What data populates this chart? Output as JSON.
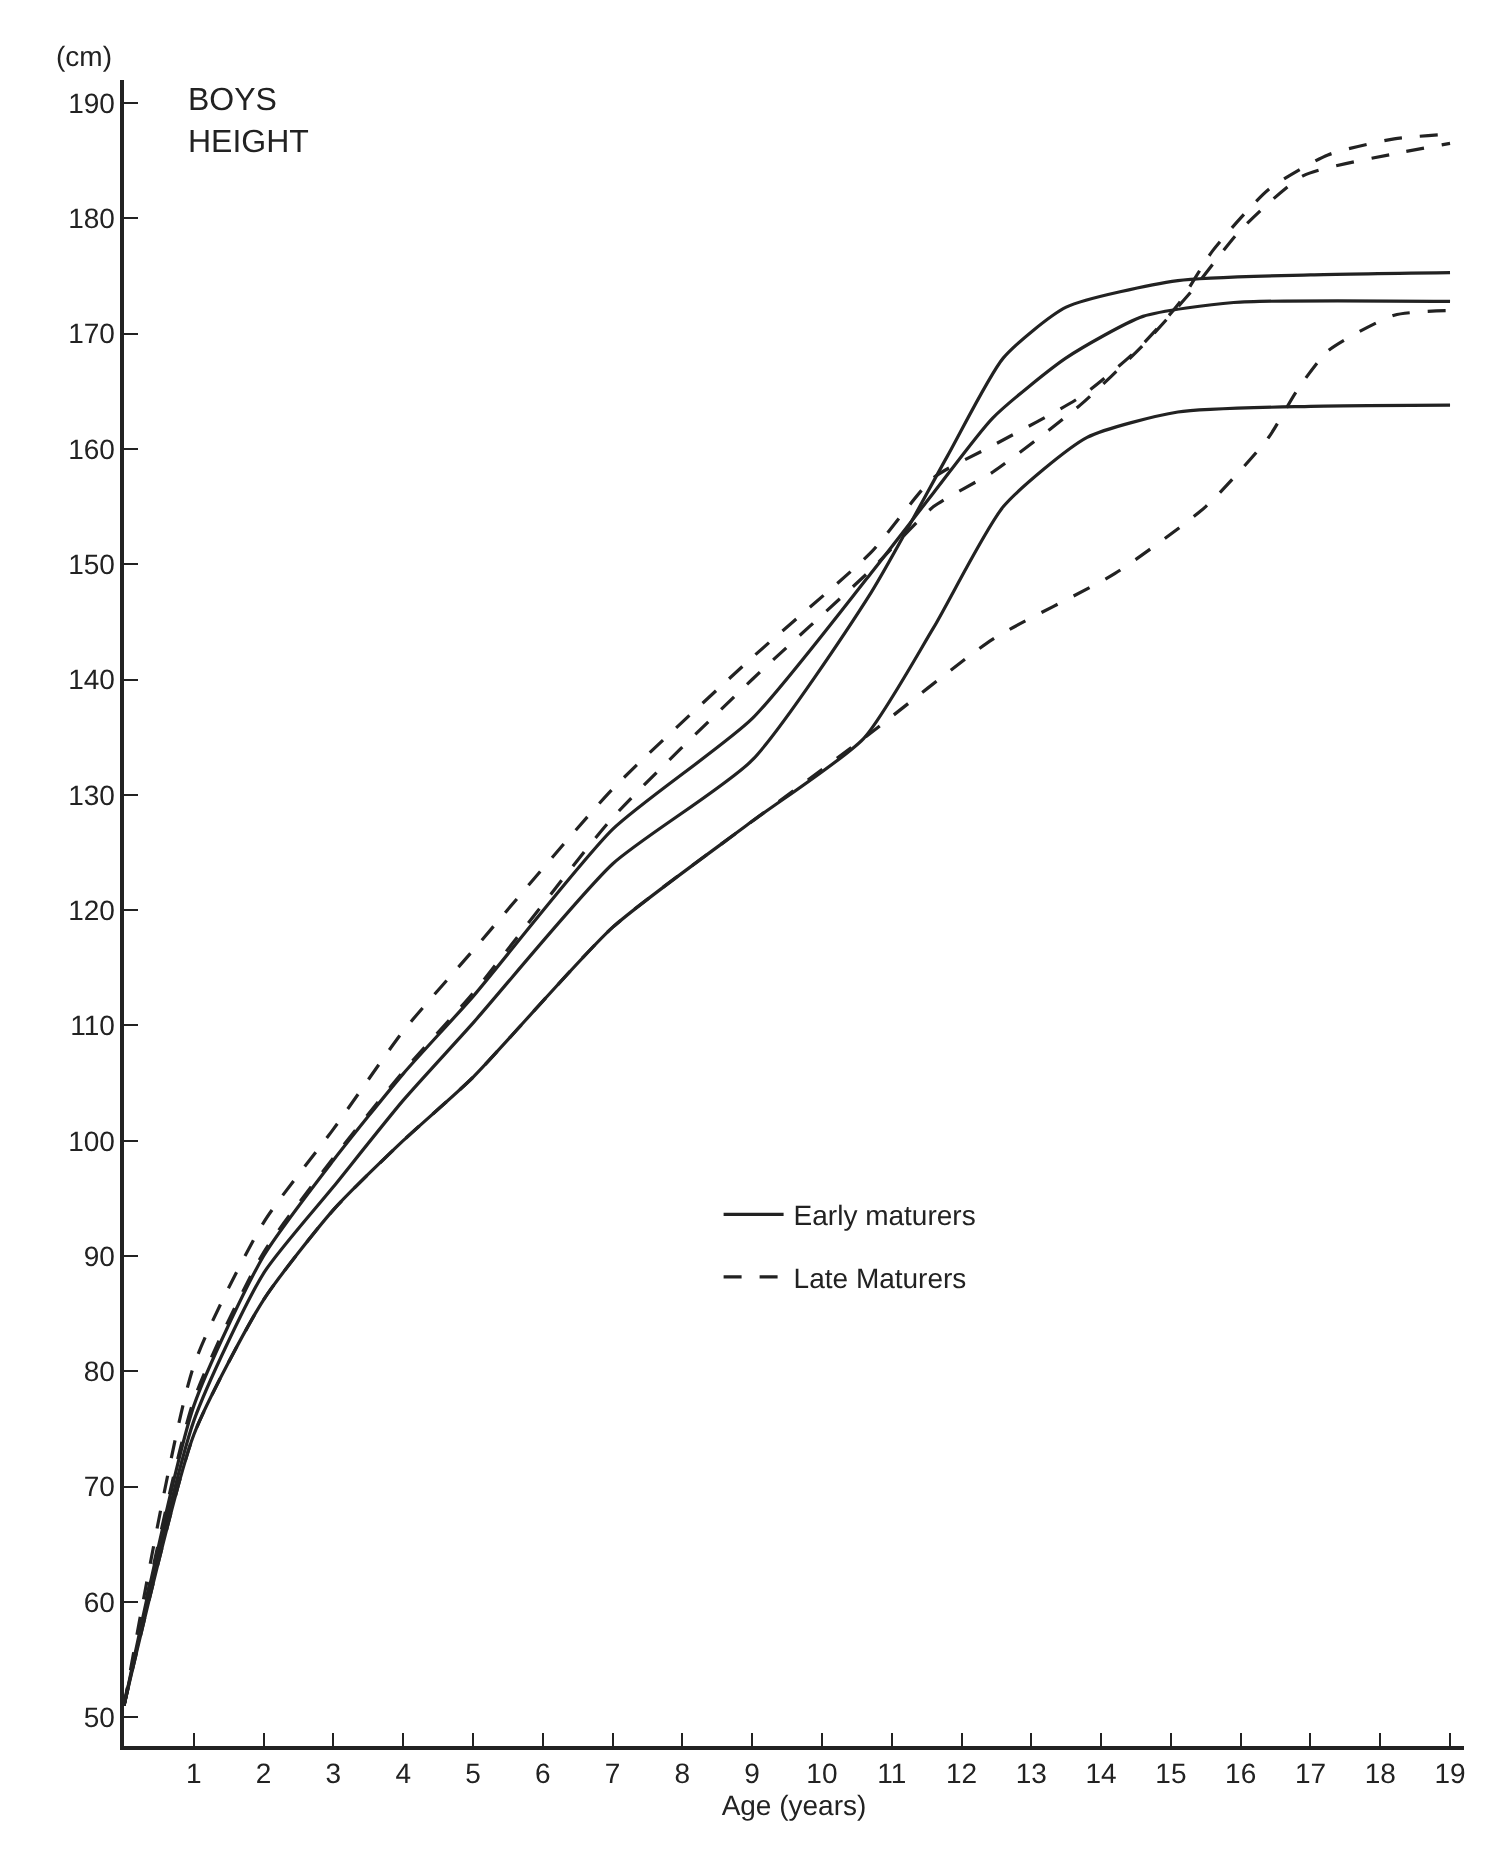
{
  "chart_data": {
    "type": "line",
    "title": "BOYS\nHEIGHT",
    "ylabel": "(cm)",
    "xlabel": "Age (years)",
    "xlim": [
      0,
      19.2
    ],
    "ylim": [
      47.5,
      192
    ],
    "xticks": [
      1,
      2,
      3,
      4,
      5,
      6,
      7,
      8,
      9,
      10,
      11,
      12,
      13,
      14,
      15,
      16,
      17,
      18,
      19
    ],
    "yticks": [
      50,
      60,
      70,
      80,
      90,
      100,
      110,
      120,
      130,
      140,
      150,
      160,
      170,
      180,
      190
    ],
    "grid": false,
    "legend": "bottom right",
    "marker": "none",
    "series": [
      {
        "name": "Early maturers",
        "color": "#222222",
        "line_style": "solid",
        "x": [
          0,
          1,
          2,
          3,
          4,
          5,
          7,
          9,
          10.7,
          11.8,
          12.6,
          13.5,
          15.1,
          17,
          19
        ],
        "values": [
          51,
          75.7,
          88.5,
          96,
          103.5,
          110.2,
          124,
          133,
          147.5,
          159.4,
          167.9,
          172.3,
          174.6,
          175.1,
          175.3
        ]
      },
      {
        "color": "#222222",
        "line_style": "solid",
        "x": [
          0,
          1,
          2,
          3,
          4,
          5,
          7,
          9,
          10.7,
          11.6,
          12.45,
          13.5,
          14.6,
          15.9,
          19
        ],
        "values": [
          51,
          77,
          90,
          98.3,
          105.8,
          112.5,
          127,
          136.6,
          149.2,
          156.2,
          162.7,
          167.9,
          171.5,
          172.7,
          172.8
        ]
      },
      {
        "color": "#222222",
        "line_style": "solid",
        "x": [
          0,
          1,
          2,
          3,
          4,
          5,
          7,
          9,
          10.6,
          11.6,
          12.6,
          13.8,
          15.1,
          17,
          19
        ],
        "values": [
          51,
          74.5,
          86.2,
          94,
          100,
          105.5,
          118.5,
          127.7,
          134.9,
          144.5,
          155,
          161,
          163.2,
          163.7,
          163.8
        ]
      },
      {
        "name": "Late Maturers",
        "color": "#222222",
        "line_style": "dashed",
        "x": [
          0,
          1,
          2,
          3,
          4,
          5,
          7,
          9,
          10.7,
          11.6,
          12.45,
          13.7,
          14.5,
          15.1,
          15.6,
          16.4,
          17.25,
          18.2,
          19
        ],
        "values": [
          51,
          80.5,
          92.9,
          101,
          109.5,
          116.5,
          130.5,
          141.9,
          151,
          157.5,
          160.3,
          164.5,
          168.5,
          172.5,
          177.2,
          182.5,
          185.5,
          186.9,
          187.3
        ]
      },
      {
        "color": "#222222",
        "line_style": "dashed",
        "x": [
          0,
          1,
          2,
          3,
          4,
          5,
          7,
          9,
          10.7,
          11.6,
          12.45,
          13.7,
          14.6,
          15.3,
          16,
          16.9,
          18.2,
          19
        ],
        "values": [
          51,
          77.5,
          90.3,
          98.5,
          106,
          112.8,
          128,
          140,
          149.5,
          155,
          158,
          163.8,
          169,
          173.7,
          179,
          183.7,
          185.6,
          186.5
        ]
      },
      {
        "color": "#222222",
        "line_style": "dashed",
        "x": [
          0,
          1,
          2,
          3,
          4,
          5,
          7,
          9,
          10.6,
          12.45,
          14.2,
          15.5,
          16.4,
          16.8,
          17.25,
          18.2,
          19
        ],
        "values": [
          51,
          74.5,
          86.2,
          94,
          100,
          105.5,
          118.5,
          127.7,
          134.9,
          143.5,
          149.2,
          155,
          161,
          165,
          168.5,
          171.6,
          172
        ]
      }
    ]
  }
}
